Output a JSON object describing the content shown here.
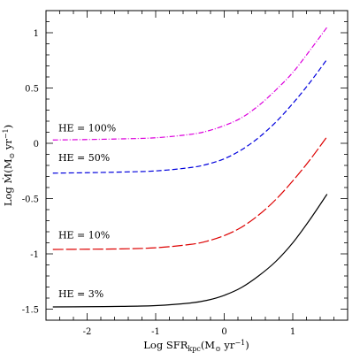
{
  "chart_data": {
    "type": "line",
    "xlabel_parts": {
      "main": "Log  SFR",
      "sub": "kpc",
      "rest": "(M",
      "sun": "⊙",
      "tail": " yr",
      "sup": "−1",
      "end": ")"
    },
    "ylabel_parts": {
      "main": "Log  Ṁ(M",
      "sun": "⊙",
      "tail": " yr",
      "sup": "−1",
      "end": ")"
    },
    "xlim": [
      -2.6,
      1.8
    ],
    "ylim": [
      -1.6,
      1.2
    ],
    "x_ticks": [
      -2,
      -1,
      0,
      1
    ],
    "x_tick_labels": [
      "-2",
      "-1",
      "0",
      "1"
    ],
    "y_ticks": [
      -1.5,
      -1,
      -0.5,
      0,
      0.5,
      1
    ],
    "y_tick_labels": [
      "-1.5",
      "-1",
      "-0.5",
      "0",
      "0.5",
      "1"
    ],
    "x_minor_step": 0.2,
    "y_minor_step": 0.1,
    "series": [
      {
        "name": "HE = 100%",
        "color": "#dd00dd",
        "dash": "6,2,1,2",
        "label_at": [
          -2.42,
          0.11
        ],
        "x": [
          -2.5,
          -2.0,
          -1.5,
          -1.0,
          -0.5,
          -0.25,
          0.0,
          0.25,
          0.5,
          0.75,
          1.0,
          1.25,
          1.5
        ],
        "y": [
          0.03,
          0.034,
          0.04,
          0.05,
          0.08,
          0.11,
          0.16,
          0.23,
          0.34,
          0.48,
          0.64,
          0.84,
          1.05
        ]
      },
      {
        "name": "HE = 50%",
        "color": "#0000dd",
        "dash": "6,3",
        "label_at": [
          -2.42,
          -0.16
        ],
        "x": [
          -2.5,
          -2.0,
          -1.5,
          -1.0,
          -0.5,
          -0.25,
          0.0,
          0.25,
          0.5,
          0.75,
          1.0,
          1.25,
          1.5
        ],
        "y": [
          -0.27,
          -0.266,
          -0.26,
          -0.25,
          -0.22,
          -0.19,
          -0.14,
          -0.06,
          0.05,
          0.19,
          0.36,
          0.55,
          0.76
        ]
      },
      {
        "name": "HE = 10%",
        "color": "#dd0000",
        "dash": "12,3",
        "label_at": [
          -2.42,
          -0.86
        ],
        "x": [
          -2.5,
          -2.0,
          -1.5,
          -1.0,
          -0.5,
          -0.25,
          0.0,
          0.25,
          0.5,
          0.75,
          1.0,
          1.25,
          1.5
        ],
        "y": [
          -0.96,
          -0.958,
          -0.955,
          -0.945,
          -0.915,
          -0.885,
          -0.835,
          -0.76,
          -0.65,
          -0.51,
          -0.34,
          -0.15,
          0.06
        ]
      },
      {
        "name": "HE = 3%",
        "color": "#000000",
        "dash": "",
        "label_at": [
          -2.42,
          -1.39
        ],
        "x": [
          -2.5,
          -2.0,
          -1.5,
          -1.0,
          -0.5,
          -0.25,
          0.0,
          0.25,
          0.5,
          0.75,
          1.0,
          1.25,
          1.5
        ],
        "y": [
          -1.48,
          -1.478,
          -1.475,
          -1.468,
          -1.445,
          -1.42,
          -1.375,
          -1.305,
          -1.2,
          -1.07,
          -0.9,
          -0.69,
          -0.46
        ]
      }
    ]
  }
}
